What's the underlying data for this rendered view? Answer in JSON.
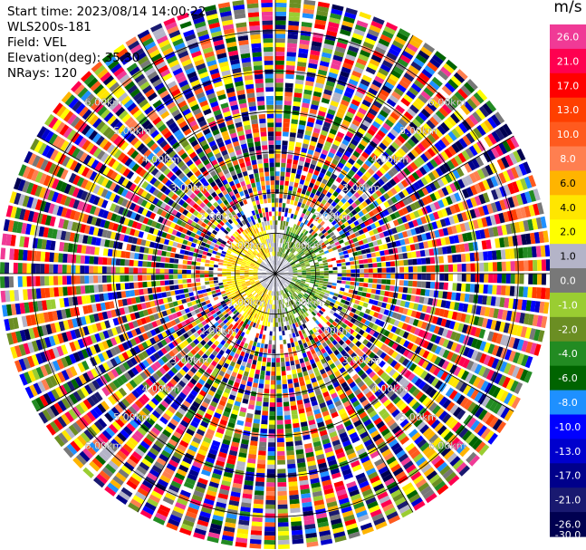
{
  "header": {
    "start_time": "Start time: 2023/08/14 14:00:22",
    "instrument": "WLS200s-181",
    "field": "Field: VEL",
    "elevation": "Elevation(deg): 35.30",
    "nrays": "NRays: 120"
  },
  "chart_data": {
    "type": "heatmap",
    "subtype": "ppi-polar-scan",
    "title": "",
    "field": "VEL",
    "elevation_deg": 35.3,
    "n_rays": 120,
    "range_ring_labels": [
      "1.00km",
      "2.00km",
      "3.00km",
      "4.00km",
      "5.00km",
      "6.00km"
    ],
    "range_rings_km": [
      1,
      2,
      3,
      4,
      5,
      6
    ],
    "max_range_km": 6.8,
    "colorbar": {
      "unit": "m/s",
      "ticks": [
        "26.0",
        "21.0",
        "17.0",
        "13.0",
        "10.0",
        "8.0",
        "6.0",
        "4.0",
        "2.0",
        "1.0",
        "0.0",
        "-1.0",
        "-2.0",
        "-4.0",
        "-6.0",
        "-8.0",
        "-10.0",
        "-13.0",
        "-17.0",
        "-21.0",
        "-26.0",
        "-30.0"
      ],
      "band_colors": [
        "#f03a96",
        "#ff0050",
        "#ff0000",
        "#ff3f00",
        "#ff5a1e",
        "#ff7f50",
        "#ffb400",
        "#ffe600",
        "#ffff00",
        "#b4b4c8",
        "#787878",
        "#9acd32",
        "#6b8e23",
        "#228b22",
        "#006400",
        "#1e90ff",
        "#0000ff",
        "#0000cd",
        "#00008b",
        "#191970",
        "#000050"
      ]
    },
    "near_field": {
      "extent_km": 1.3,
      "approach_side": "east",
      "approach_colors": [
        "#228b22",
        "#6b8e23",
        "#9acd32"
      ],
      "recede_side": "west",
      "recede_colors": [
        "#ffe600",
        "#ffff00",
        "#ffb400"
      ],
      "center_color": "#b4b4c8"
    }
  }
}
